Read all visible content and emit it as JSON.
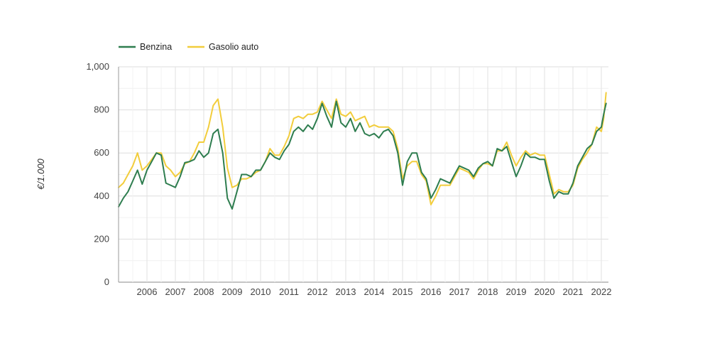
{
  "chart_data": {
    "type": "line",
    "title": "",
    "xlabel": "",
    "ylabel": "€/1.000",
    "ylim": [
      0,
      1000
    ],
    "xlim": [
      "2005-01",
      "2022-03"
    ],
    "grid": true,
    "legend_position": "top-left",
    "y_ticks": [
      "0",
      "200",
      "400",
      "600",
      "800",
      "1,000"
    ],
    "x_ticks": [
      "2006",
      "2007",
      "2008",
      "2009",
      "2010",
      "2011",
      "2012",
      "2013",
      "2014",
      "2015",
      "2016",
      "2017",
      "2018",
      "2019",
      "2020",
      "2021",
      "2022"
    ],
    "series": [
      {
        "name": "Benzina",
        "color": "#2e7d4f",
        "points": [
          [
            "2005-01",
            350
          ],
          [
            "2005-03",
            390
          ],
          [
            "2005-05",
            420
          ],
          [
            "2005-07",
            470
          ],
          [
            "2005-09",
            520
          ],
          [
            "2005-11",
            455
          ],
          [
            "2006-01",
            520
          ],
          [
            "2006-03",
            560
          ],
          [
            "2006-05",
            600
          ],
          [
            "2006-07",
            590
          ],
          [
            "2006-09",
            460
          ],
          [
            "2006-11",
            450
          ],
          [
            "2007-01",
            440
          ],
          [
            "2007-03",
            490
          ],
          [
            "2007-05",
            555
          ],
          [
            "2007-07",
            560
          ],
          [
            "2007-09",
            570
          ],
          [
            "2007-11",
            610
          ],
          [
            "2008-01",
            580
          ],
          [
            "2008-03",
            600
          ],
          [
            "2008-05",
            690
          ],
          [
            "2008-07",
            710
          ],
          [
            "2008-09",
            600
          ],
          [
            "2008-11",
            390
          ],
          [
            "2009-01",
            340
          ],
          [
            "2009-03",
            420
          ],
          [
            "2009-05",
            500
          ],
          [
            "2009-07",
            500
          ],
          [
            "2009-09",
            490
          ],
          [
            "2009-11",
            520
          ],
          [
            "2010-01",
            520
          ],
          [
            "2010-03",
            560
          ],
          [
            "2010-05",
            600
          ],
          [
            "2010-07",
            580
          ],
          [
            "2010-09",
            570
          ],
          [
            "2010-11",
            610
          ],
          [
            "2011-01",
            640
          ],
          [
            "2011-03",
            700
          ],
          [
            "2011-05",
            720
          ],
          [
            "2011-07",
            700
          ],
          [
            "2011-09",
            730
          ],
          [
            "2011-11",
            710
          ],
          [
            "2012-01",
            760
          ],
          [
            "2012-03",
            830
          ],
          [
            "2012-05",
            770
          ],
          [
            "2012-07",
            720
          ],
          [
            "2012-09",
            840
          ],
          [
            "2012-11",
            740
          ],
          [
            "2013-01",
            720
          ],
          [
            "2013-03",
            760
          ],
          [
            "2013-05",
            700
          ],
          [
            "2013-07",
            740
          ],
          [
            "2013-09",
            690
          ],
          [
            "2013-11",
            680
          ],
          [
            "2014-01",
            690
          ],
          [
            "2014-03",
            670
          ],
          [
            "2014-05",
            700
          ],
          [
            "2014-07",
            710
          ],
          [
            "2014-09",
            680
          ],
          [
            "2014-11",
            600
          ],
          [
            "2015-01",
            450
          ],
          [
            "2015-03",
            560
          ],
          [
            "2015-05",
            600
          ],
          [
            "2015-07",
            600
          ],
          [
            "2015-09",
            510
          ],
          [
            "2015-11",
            480
          ],
          [
            "2016-01",
            390
          ],
          [
            "2016-03",
            430
          ],
          [
            "2016-05",
            480
          ],
          [
            "2016-07",
            470
          ],
          [
            "2016-09",
            460
          ],
          [
            "2016-11",
            500
          ],
          [
            "2017-01",
            540
          ],
          [
            "2017-03",
            530
          ],
          [
            "2017-05",
            520
          ],
          [
            "2017-07",
            490
          ],
          [
            "2017-09",
            530
          ],
          [
            "2017-11",
            550
          ],
          [
            "2018-01",
            560
          ],
          [
            "2018-03",
            540
          ],
          [
            "2018-05",
            620
          ],
          [
            "2018-07",
            610
          ],
          [
            "2018-09",
            630
          ],
          [
            "2018-11",
            560
          ],
          [
            "2019-01",
            490
          ],
          [
            "2019-03",
            540
          ],
          [
            "2019-05",
            600
          ],
          [
            "2019-07",
            580
          ],
          [
            "2019-09",
            580
          ],
          [
            "2019-11",
            570
          ],
          [
            "2020-01",
            570
          ],
          [
            "2020-03",
            470
          ],
          [
            "2020-05",
            390
          ],
          [
            "2020-07",
            420
          ],
          [
            "2020-09",
            410
          ],
          [
            "2020-11",
            410
          ],
          [
            "2021-01",
            460
          ],
          [
            "2021-03",
            540
          ],
          [
            "2021-05",
            580
          ],
          [
            "2021-07",
            620
          ],
          [
            "2021-09",
            640
          ],
          [
            "2021-11",
            700
          ],
          [
            "2022-01",
            720
          ],
          [
            "2022-02",
            780
          ],
          [
            "2022-03",
            830
          ]
        ]
      },
      {
        "name": "Gasolio auto",
        "color": "#f2cd3c",
        "points": [
          [
            "2005-01",
            440
          ],
          [
            "2005-03",
            460
          ],
          [
            "2005-05",
            500
          ],
          [
            "2005-07",
            540
          ],
          [
            "2005-09",
            600
          ],
          [
            "2005-11",
            520
          ],
          [
            "2006-01",
            540
          ],
          [
            "2006-03",
            570
          ],
          [
            "2006-05",
            600
          ],
          [
            "2006-07",
            600
          ],
          [
            "2006-09",
            540
          ],
          [
            "2006-11",
            520
          ],
          [
            "2007-01",
            490
          ],
          [
            "2007-03",
            510
          ],
          [
            "2007-05",
            550
          ],
          [
            "2007-07",
            560
          ],
          [
            "2007-09",
            600
          ],
          [
            "2007-11",
            650
          ],
          [
            "2008-01",
            650
          ],
          [
            "2008-03",
            720
          ],
          [
            "2008-05",
            820
          ],
          [
            "2008-07",
            850
          ],
          [
            "2008-09",
            720
          ],
          [
            "2008-11",
            530
          ],
          [
            "2009-01",
            440
          ],
          [
            "2009-03",
            450
          ],
          [
            "2009-05",
            480
          ],
          [
            "2009-07",
            480
          ],
          [
            "2009-09",
            490
          ],
          [
            "2009-11",
            510
          ],
          [
            "2010-01",
            520
          ],
          [
            "2010-03",
            560
          ],
          [
            "2010-05",
            620
          ],
          [
            "2010-07",
            590
          ],
          [
            "2010-09",
            590
          ],
          [
            "2010-11",
            630
          ],
          [
            "2011-01",
            680
          ],
          [
            "2011-03",
            760
          ],
          [
            "2011-05",
            770
          ],
          [
            "2011-07",
            760
          ],
          [
            "2011-09",
            780
          ],
          [
            "2011-11",
            780
          ],
          [
            "2012-01",
            790
          ],
          [
            "2012-03",
            840
          ],
          [
            "2012-05",
            800
          ],
          [
            "2012-07",
            760
          ],
          [
            "2012-09",
            850
          ],
          [
            "2012-11",
            780
          ],
          [
            "2013-01",
            770
          ],
          [
            "2013-03",
            790
          ],
          [
            "2013-05",
            750
          ],
          [
            "2013-07",
            760
          ],
          [
            "2013-09",
            770
          ],
          [
            "2013-11",
            720
          ],
          [
            "2014-01",
            730
          ],
          [
            "2014-03",
            720
          ],
          [
            "2014-05",
            720
          ],
          [
            "2014-07",
            720
          ],
          [
            "2014-09",
            700
          ],
          [
            "2014-11",
            620
          ],
          [
            "2015-01",
            480
          ],
          [
            "2015-03",
            540
          ],
          [
            "2015-05",
            560
          ],
          [
            "2015-07",
            560
          ],
          [
            "2015-09",
            500
          ],
          [
            "2015-11",
            470
          ],
          [
            "2016-01",
            360
          ],
          [
            "2016-03",
            400
          ],
          [
            "2016-05",
            450
          ],
          [
            "2016-07",
            450
          ],
          [
            "2016-09",
            450
          ],
          [
            "2016-11",
            490
          ],
          [
            "2017-01",
            530
          ],
          [
            "2017-03",
            520
          ],
          [
            "2017-05",
            510
          ],
          [
            "2017-07",
            480
          ],
          [
            "2017-09",
            520
          ],
          [
            "2017-11",
            550
          ],
          [
            "2018-01",
            550
          ],
          [
            "2018-03",
            540
          ],
          [
            "2018-05",
            610
          ],
          [
            "2018-07",
            610
          ],
          [
            "2018-09",
            650
          ],
          [
            "2018-11",
            590
          ],
          [
            "2019-01",
            540
          ],
          [
            "2019-03",
            580
          ],
          [
            "2019-05",
            610
          ],
          [
            "2019-07",
            590
          ],
          [
            "2019-09",
            600
          ],
          [
            "2019-11",
            590
          ],
          [
            "2020-01",
            590
          ],
          [
            "2020-03",
            500
          ],
          [
            "2020-05",
            410
          ],
          [
            "2020-07",
            430
          ],
          [
            "2020-09",
            420
          ],
          [
            "2020-11",
            420
          ],
          [
            "2021-01",
            450
          ],
          [
            "2021-03",
            530
          ],
          [
            "2021-05",
            570
          ],
          [
            "2021-07",
            600
          ],
          [
            "2021-09",
            640
          ],
          [
            "2021-11",
            720
          ],
          [
            "2022-01",
            700
          ],
          [
            "2022-02",
            760
          ],
          [
            "2022-03",
            880
          ]
        ]
      }
    ]
  }
}
